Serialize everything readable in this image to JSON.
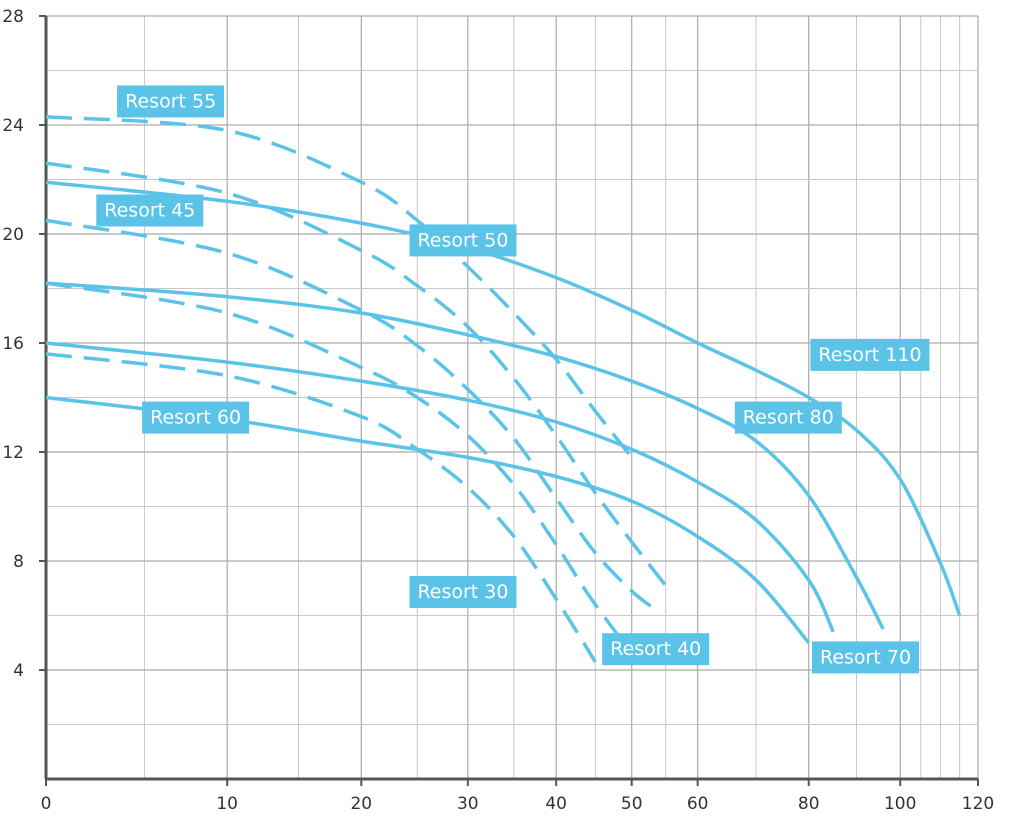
{
  "chart_data": {
    "type": "line",
    "title": "",
    "xlabel": "",
    "ylabel": "",
    "xscale": "log",
    "xlim": [
      0,
      120
    ],
    "ylim": [
      0,
      28
    ],
    "x_ticks": [
      0,
      10,
      20,
      30,
      40,
      50,
      60,
      80,
      100,
      120
    ],
    "y_ticks": [
      4,
      8,
      12,
      16,
      20,
      24,
      28
    ],
    "grid": true,
    "colors": {
      "series": "#5cc3e8",
      "label_bg": "#5cc3e8",
      "label_text": "#ffffff",
      "grid": "#c8c8c8",
      "grid_major": "#aaaaaa",
      "axis": "#555555"
    },
    "series": [
      {
        "name": "Resort 30",
        "style": "dashed",
        "x": [
          0,
          10,
          20,
          25,
          30,
          35,
          40,
          45
        ],
        "y": [
          15.6,
          14.8,
          13.3,
          12.1,
          10.7,
          8.9,
          6.6,
          4.3
        ]
      },
      {
        "name": "Resort 40",
        "style": "dashed",
        "x": [
          0,
          10,
          20,
          25,
          30,
          35,
          40,
          44,
          48
        ],
        "y": [
          18.2,
          17.1,
          15.1,
          14.0,
          12.6,
          10.8,
          8.6,
          6.8,
          5.3
        ]
      },
      {
        "name": "Resort 45",
        "style": "dashed",
        "x": [
          0,
          10,
          20,
          25,
          30,
          35,
          40,
          45,
          50,
          53
        ],
        "y": [
          20.5,
          19.3,
          17.2,
          15.9,
          14.3,
          12.5,
          10.3,
          8.3,
          6.9,
          6.3
        ]
      },
      {
        "name": "Resort 50",
        "style": "dashed",
        "x": [
          0,
          10,
          20,
          25,
          30,
          35,
          40,
          45,
          50,
          55
        ],
        "y": [
          22.6,
          21.5,
          19.4,
          18.1,
          16.6,
          14.7,
          12.6,
          10.5,
          8.7,
          7.1
        ]
      },
      {
        "name": "Resort 55",
        "style": "dashed",
        "x": [
          0,
          10,
          20,
          25,
          30,
          35,
          40,
          45,
          50
        ],
        "y": [
          24.3,
          23.8,
          21.9,
          20.5,
          18.8,
          17.1,
          15.4,
          13.5,
          11.8
        ]
      },
      {
        "name": "Resort 60",
        "style": "solid",
        "x": [
          0,
          10,
          20,
          30,
          40,
          50,
          60,
          70,
          80
        ],
        "y": [
          14.0,
          13.2,
          12.4,
          11.8,
          11.1,
          10.2,
          8.9,
          7.3,
          5.0
        ]
      },
      {
        "name": "Resort 70",
        "style": "solid",
        "x": [
          0,
          10,
          20,
          30,
          40,
          50,
          60,
          70,
          80,
          85
        ],
        "y": [
          16.0,
          15.3,
          14.6,
          13.9,
          13.1,
          12.1,
          10.9,
          9.5,
          7.3,
          5.4
        ]
      },
      {
        "name": "Resort 80",
        "style": "solid",
        "x": [
          0,
          10,
          20,
          30,
          40,
          50,
          60,
          70,
          80,
          90,
          96
        ],
        "y": [
          18.2,
          17.7,
          17.1,
          16.3,
          15.5,
          14.6,
          13.6,
          12.4,
          10.4,
          7.4,
          5.5
        ]
      },
      {
        "name": "Resort 110",
        "style": "solid",
        "x": [
          0,
          10,
          20,
          30,
          40,
          50,
          60,
          70,
          80,
          90,
          100,
          110,
          115
        ],
        "y": [
          21.9,
          21.2,
          20.4,
          19.5,
          18.4,
          17.2,
          16.0,
          15.0,
          14.0,
          12.8,
          11.0,
          7.9,
          6.0
        ]
      }
    ],
    "annotations": [
      {
        "text": "Resort 55",
        "x": 6.5,
        "y": 24.9
      },
      {
        "text": "Resort 45",
        "x": 5.3,
        "y": 20.9
      },
      {
        "text": "Resort 50",
        "x": 29.5,
        "y": 19.8
      },
      {
        "text": "Resort 110",
        "x": 93,
        "y": 15.6
      },
      {
        "text": "Resort 80",
        "x": 76,
        "y": 13.3
      },
      {
        "text": "Resort 60",
        "x": 8.0,
        "y": 13.3
      },
      {
        "text": "Resort 30",
        "x": 29.5,
        "y": 6.9
      },
      {
        "text": "Resort 40",
        "x": 53.5,
        "y": 4.8
      },
      {
        "text": "Resort 70",
        "x": 92,
        "y": 4.5
      }
    ]
  }
}
